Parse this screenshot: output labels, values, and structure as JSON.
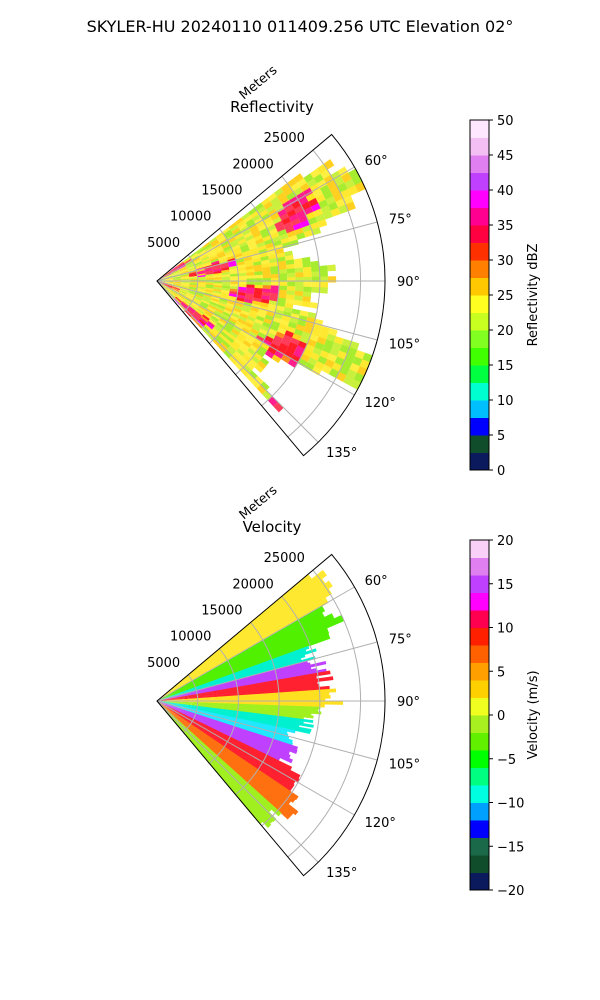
{
  "figure": {
    "suptitle": "SKYLER-HU  20240110  011409.256 UTC Elevation 02°"
  },
  "chart_data": [
    {
      "type": "heatmap",
      "title": "Reflectivity",
      "radial_label": "Meters",
      "radial_ticks": [
        "5000",
        "10000",
        "15000",
        "20000",
        "25000"
      ],
      "radial_range": [
        0,
        28000
      ],
      "azimuth_range_deg": [
        50,
        140
      ],
      "azimuth_ticks": [
        "60°",
        "75°",
        "90°",
        "105°",
        "120°",
        "135°"
      ],
      "grid": true,
      "colorbar": {
        "label": "Reflectivity dBZ",
        "range": [
          0,
          50
        ],
        "ticks": [
          "0",
          "5",
          "10",
          "15",
          "20",
          "25",
          "30",
          "35",
          "40",
          "45",
          "50"
        ],
        "colors": [
          "#0a1a5c",
          "#0f4d2b",
          "#0000ff",
          "#00bfff",
          "#00ffd0",
          "#00ff40",
          "#40ff00",
          "#80ff20",
          "#c8ff20",
          "#ffff20",
          "#ffc800",
          "#ff8000",
          "#ff3000",
          "#ff0040",
          "#ff0090",
          "#ff00ff",
          "#c040ff",
          "#e080f0",
          "#f4c0f4",
          "#ffe8ff"
        ]
      },
      "field_palette": [
        "#ffd21e",
        "#ffe61e",
        "#d2f03c",
        "#ff1e28",
        "#ff3c5a",
        "#ff1e8c",
        "#ff00ff",
        "#ff8c1e"
      ],
      "field_palette_fill": [
        "#ffe830",
        "#ffd020",
        "#ffef40",
        "#c8f03c",
        "#a8ec30"
      ]
    },
    {
      "type": "heatmap",
      "title": "Velocity",
      "radial_label": "Meters",
      "radial_ticks": [
        "5000",
        "10000",
        "15000",
        "20000",
        "25000"
      ],
      "radial_range": [
        0,
        28000
      ],
      "azimuth_range_deg": [
        50,
        140
      ],
      "azimuth_ticks": [
        "60°",
        "75°",
        "90°",
        "105°",
        "120°",
        "135°"
      ],
      "grid": true,
      "colorbar": {
        "label": "Velocity (m/s)",
        "range": [
          -20,
          20
        ],
        "ticks": [
          "−20",
          "−15",
          "−10",
          "−5",
          "0",
          "5",
          "10",
          "15",
          "20"
        ],
        "colors": [
          "#0a1a5c",
          "#0f4d2b",
          "#1a6a4a",
          "#0000ff",
          "#00a0ff",
          "#00ffe0",
          "#00ff80",
          "#00ff00",
          "#60f000",
          "#a8f020",
          "#f0ff20",
          "#ffd000",
          "#ffa000",
          "#ff6000",
          "#ff2000",
          "#ff0050",
          "#ff00ff",
          "#c040ff",
          "#e080f0",
          "#f8d0f8"
        ]
      },
      "bands": [
        {
          "az_start": 50,
          "az_end": 60,
          "color": "#ffe830",
          "reach": 0.95
        },
        {
          "az_start": 60,
          "az_end": 70,
          "color": "#50f000",
          "reach": 0.88
        },
        {
          "az_start": 70,
          "az_end": 75,
          "color": "#00f0d0",
          "reach": 0.72
        },
        {
          "az_start": 75,
          "az_end": 80,
          "color": "#c040ff",
          "reach": 0.75
        },
        {
          "az_start": 80,
          "az_end": 86,
          "color": "#ff2030",
          "reach": 0.78
        },
        {
          "az_start": 86,
          "az_end": 92,
          "color": "#ffe020",
          "reach": 0.8
        },
        {
          "az_start": 92,
          "az_end": 97,
          "color": "#a0f020",
          "reach": 0.72
        },
        {
          "az_start": 97,
          "az_end": 102,
          "color": "#00f0d0",
          "reach": 0.7
        },
        {
          "az_start": 102,
          "az_end": 108,
          "color": "#20e8ff",
          "reach": 0.62
        },
        {
          "az_start": 108,
          "az_end": 116,
          "color": "#c040ff",
          "reach": 0.66
        },
        {
          "az_start": 116,
          "az_end": 124,
          "color": "#ff2030",
          "reach": 0.72
        },
        {
          "az_start": 124,
          "az_end": 132,
          "color": "#ff7010",
          "reach": 0.78
        },
        {
          "az_start": 132,
          "az_end": 140,
          "color": "#a0f020",
          "reach": 0.74
        }
      ]
    }
  ]
}
